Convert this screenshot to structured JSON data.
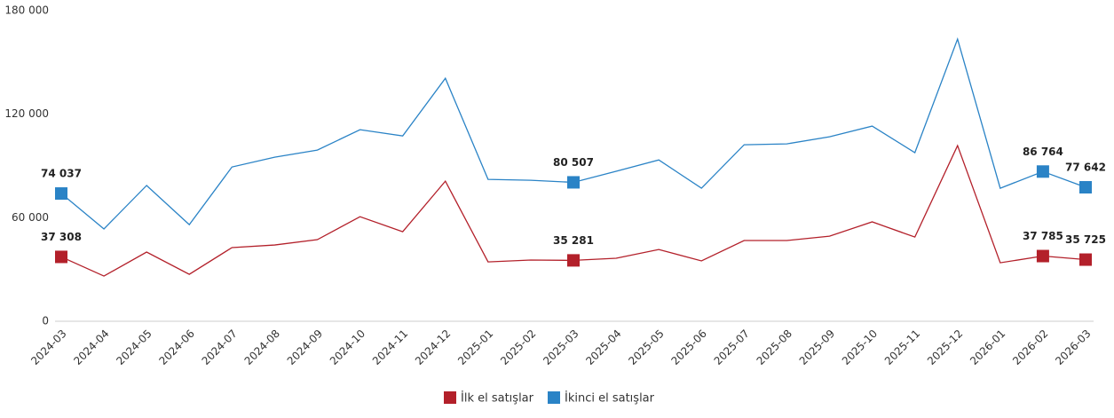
{
  "chart_data": {
    "type": "line",
    "categories": [
      "2024-03",
      "2024-04",
      "2024-05",
      "2024-06",
      "2024-07",
      "2024-08",
      "2024-09",
      "2024-10",
      "2024-11",
      "2024-12",
      "2025-01",
      "2025-02",
      "2025-03",
      "2025-04",
      "2025-05",
      "2025-06",
      "2025-07",
      "2025-08",
      "2025-09",
      "2025-10",
      "2025-11",
      "2025-12",
      "2026-01",
      "2026-02",
      "2026-03"
    ],
    "series": [
      {
        "name": "İlk el satışlar",
        "color": "#b3202a",
        "values": [
          37308,
          26200,
          40100,
          27200,
          42700,
          44200,
          47300,
          60600,
          51900,
          81200,
          34400,
          35500,
          35281,
          36500,
          41600,
          35000,
          46800,
          46800,
          49300,
          57600,
          48800,
          101800,
          33900,
          37785,
          35725
        ],
        "value_labels": [
          "37 308",
          null,
          null,
          null,
          null,
          null,
          null,
          null,
          null,
          null,
          null,
          null,
          "35 281",
          null,
          null,
          null,
          null,
          null,
          null,
          null,
          null,
          null,
          null,
          "37 785",
          "35 725"
        ]
      },
      {
        "name": "İkinci el satışlar",
        "color": "#2a83c6",
        "values": [
          74037,
          53500,
          78700,
          56000,
          89400,
          95100,
          99200,
          111000,
          107400,
          140800,
          82200,
          81700,
          80507,
          86900,
          93500,
          77100,
          102300,
          102800,
          106900,
          113100,
          97700,
          163500,
          77100,
          86764,
          77642
        ],
        "value_labels": [
          "74 037",
          null,
          null,
          null,
          null,
          null,
          null,
          null,
          null,
          null,
          null,
          null,
          "80 507",
          null,
          null,
          null,
          null,
          null,
          null,
          null,
          null,
          null,
          null,
          "86 764",
          "77 642"
        ]
      }
    ],
    "ylim": [
      0,
      180000
    ],
    "yticks": [
      0,
      {
        "value": 60000,
        "label": "60 000"
      },
      {
        "value": 120000,
        "label": "120 000"
      },
      {
        "value": 180000,
        "label": "180 000"
      }
    ],
    "grid": false,
    "legend": "bottom"
  }
}
